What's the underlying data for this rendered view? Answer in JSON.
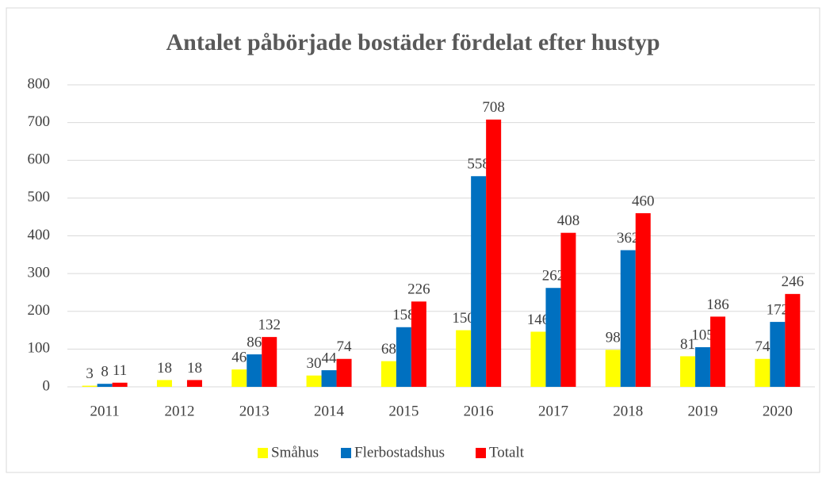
{
  "chart_data": {
    "type": "bar",
    "title": "Antalet påbörjade bostäder fördelat efter hustyp",
    "categories": [
      "2011",
      "2012",
      "2013",
      "2014",
      "2015",
      "2016",
      "2017",
      "2018",
      "2019",
      "2020"
    ],
    "series": [
      {
        "name": "Småhus",
        "color": "#ffff00",
        "values": [
          3,
          18,
          46,
          30,
          68,
          150,
          146,
          98,
          81,
          74
        ]
      },
      {
        "name": "Flerbostadshus",
        "color": "#0070c0",
        "values": [
          8,
          null,
          86,
          44,
          158,
          558,
          262,
          362,
          105,
          172
        ]
      },
      {
        "name": "Totalt",
        "color": "#ff0000",
        "values": [
          11,
          18,
          132,
          74,
          226,
          708,
          408,
          460,
          186,
          246
        ]
      }
    ],
    "ylim": [
      0,
      800
    ],
    "yticks": [
      0,
      100,
      200,
      300,
      400,
      500,
      600,
      700,
      800
    ],
    "grid": true,
    "legend": "bottom"
  }
}
